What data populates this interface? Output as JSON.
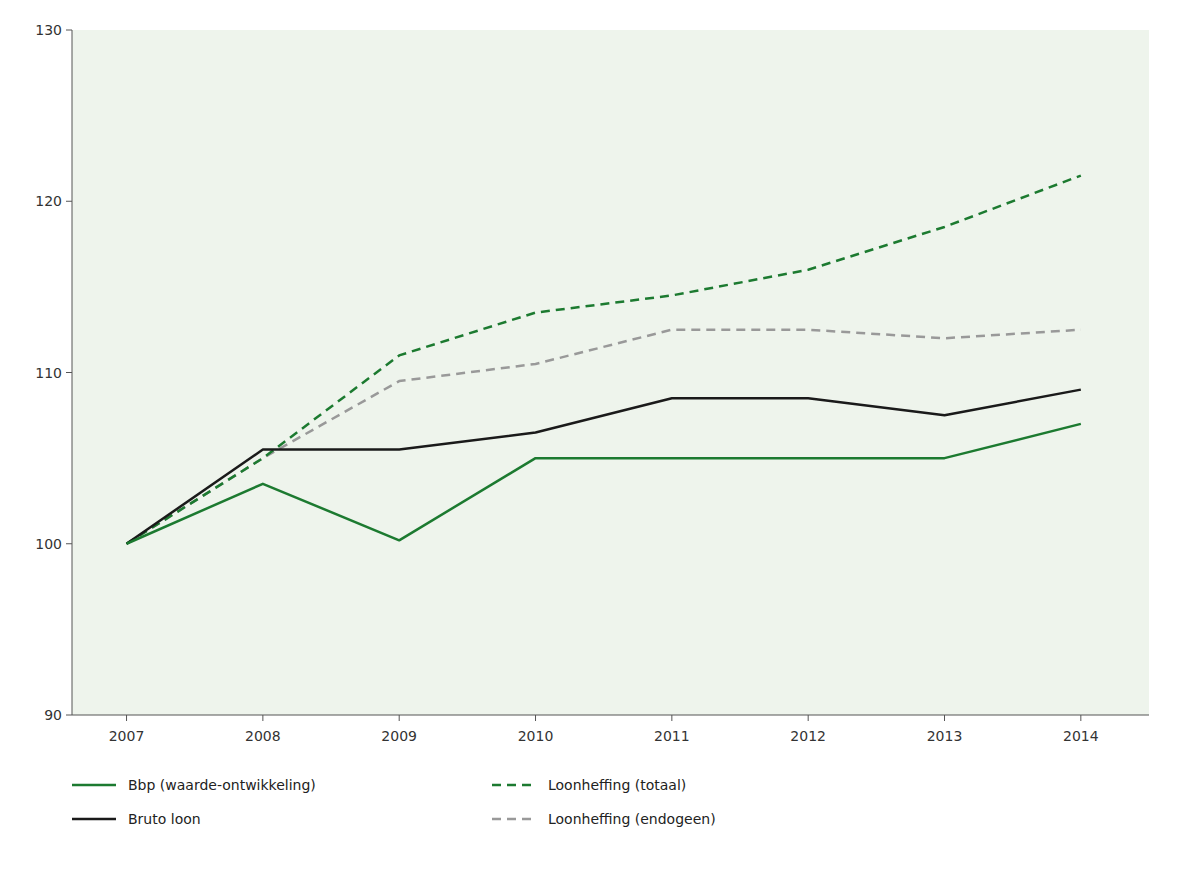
{
  "chart_data": {
    "type": "line",
    "x": [
      2007,
      2008,
      2009,
      2010,
      2011,
      2012,
      2013,
      2014
    ],
    "xlim": [
      2006.6,
      2014.5
    ],
    "xticks": [
      2007,
      2008,
      2009,
      2010,
      2011,
      2012,
      2013,
      2014
    ],
    "ylim": [
      90,
      130
    ],
    "yticks": [
      90,
      100,
      110,
      120,
      130
    ],
    "grid": false,
    "legend": "bottom",
    "series": [
      {
        "name": "Bbp (waarde-ontwikkeling)",
        "color": "#1c7a30",
        "line_style": "solid",
        "values": [
          100,
          103.5,
          100.2,
          105.0,
          105.0,
          105.0,
          105.0,
          107.0
        ]
      },
      {
        "name": "Bruto loon",
        "color": "#1a1a1a",
        "line_style": "solid",
        "values": [
          100,
          105.5,
          105.5,
          106.5,
          108.5,
          108.5,
          107.5,
          109.0
        ]
      },
      {
        "name": "Loonheffing (totaal)",
        "color": "#1c7a30",
        "line_style": "dashed",
        "values": [
          100,
          105.0,
          111.0,
          113.5,
          114.5,
          116.0,
          118.5,
          121.5
        ]
      },
      {
        "name": "Loonheffing (endogeen)",
        "color": "#999999",
        "line_style": "dashed",
        "values": [
          100,
          105.0,
          109.5,
          110.5,
          112.5,
          112.5,
          112.0,
          112.5
        ]
      }
    ]
  }
}
